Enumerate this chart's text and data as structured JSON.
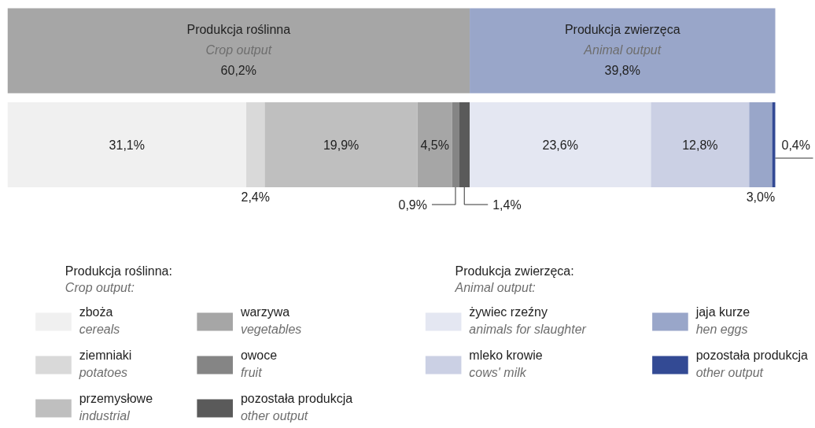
{
  "chart_data": {
    "type": "bar",
    "orientation": "horizontal",
    "stacked": true,
    "tick_labels": false,
    "legend": "bottom",
    "categories": [
      null,
      null
    ],
    "series": [
      {
        "name": "Produkcja roślinna\nCrop output",
        "color": "#a6a6a6",
        "values": [
          60.2,
          null
        ],
        "value_labels": [
          "60,2%",
          null
        ]
      },
      {
        "name": "Produkcja zwierzęca\nAnimal output",
        "color": "#99a6c9",
        "values": [
          39.8,
          null
        ],
        "value_labels": [
          "39,8%",
          null
        ]
      },
      {
        "name": "zboża\ncereals",
        "color": "#f0f0f0",
        "values": [
          null,
          31.1
        ],
        "value_labels": [
          null,
          "31,1%"
        ]
      },
      {
        "name": "ziemniaki\npotatoes",
        "color": "#d9d9d9",
        "values": [
          null,
          2.4
        ],
        "value_labels": [
          null,
          "2,4%"
        ]
      },
      {
        "name": "przemysłowe\nindustrial",
        "color": "#bfbfbf",
        "values": [
          null,
          19.9
        ],
        "value_labels": [
          null,
          "19,9%"
        ]
      },
      {
        "name": "warzywa\nvegetables",
        "color": "#a6a6a6",
        "values": [
          null,
          4.5
        ],
        "value_labels": [
          null,
          "4,5%"
        ]
      },
      {
        "name": "owoce\nfruit",
        "color": "#858585",
        "values": [
          null,
          0.9
        ],
        "value_labels": [
          null,
          "0,9%"
        ]
      },
      {
        "name": "pozostała produkcja\nother output",
        "color": "#5a5a5a",
        "values": [
          null,
          1.4
        ],
        "value_labels": [
          null,
          "1,4%"
        ]
      },
      {
        "name": "żywiec rzeźny\nanimals for slaughter",
        "color": "#e4e7f2",
        "values": [
          null,
          23.6
        ],
        "value_labels": [
          null,
          "23,6%"
        ]
      },
      {
        "name": "mleko krowie\ncows' milk",
        "color": "#cbd0e4",
        "values": [
          null,
          12.8
        ],
        "value_labels": [
          null,
          "12,8%"
        ]
      },
      {
        "name": "jaja kurze\nhen eggs",
        "color": "#99a6c9",
        "values": [
          null,
          3.0
        ],
        "value_labels": [
          null,
          "3,0%"
        ]
      },
      {
        "name": "pozostała produkcja\nother output",
        "color": "#334a94",
        "values": [
          null,
          0.4
        ],
        "value_labels": [
          null,
          "0,4%"
        ]
      }
    ],
    "annotations": [
      "Produkcja roślinna:\nCrop output:",
      "Produkcja zwierzęca:\nAnimal output:"
    ]
  }
}
